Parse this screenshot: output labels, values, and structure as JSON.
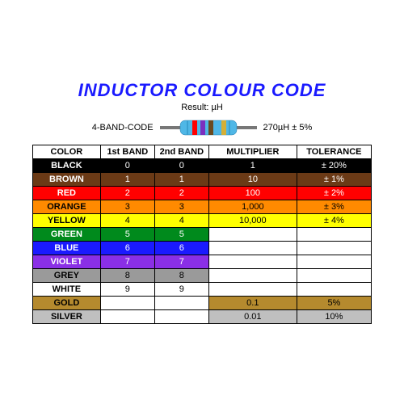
{
  "title": "INDUCTOR COLOUR CODE",
  "subtitle": "Result: µH",
  "diagram": {
    "left_label": "4-BAND-CODE",
    "right_label": "270µH ± 5%",
    "body_color": "#4fb7e6",
    "lead_color": "#777777",
    "band_colors": [
      "#ff0000",
      "#7b2fbf",
      "#6b4a1f",
      "#d4af37"
    ]
  },
  "table": {
    "headers": [
      "COLOR",
      "1st BAND",
      "2nd BAND",
      "MULTIPLIER",
      "TOLERANCE"
    ],
    "col_widths": [
      "20%",
      "16%",
      "16%",
      "26%",
      "22%"
    ],
    "rows": [
      {
        "name": "BLACK",
        "bg": "#000000",
        "fg": "#ffffff",
        "b1": "0",
        "b2": "0",
        "mult": "1",
        "mult_bg": "#000000",
        "mult_fg": "#ffffff",
        "tol": "± 20%",
        "tol_bg": "#000000",
        "tol_fg": "#ffffff"
      },
      {
        "name": "BROWN",
        "bg": "#6b3a16",
        "fg": "#ffffff",
        "b1": "1",
        "b2": "1",
        "mult": "10",
        "mult_bg": "#6b3a16",
        "mult_fg": "#ffffff",
        "tol": "± 1%",
        "tol_bg": "#6b3a16",
        "tol_fg": "#ffffff"
      },
      {
        "name": "RED",
        "bg": "#ff0000",
        "fg": "#ffffff",
        "b1": "2",
        "b2": "2",
        "mult": "100",
        "mult_bg": "#ff0000",
        "mult_fg": "#ffffff",
        "tol": "± 2%",
        "tol_bg": "#ff0000",
        "tol_fg": "#ffffff"
      },
      {
        "name": "ORANGE",
        "bg": "#ff8a00",
        "fg": "#000000",
        "b1": "3",
        "b2": "3",
        "mult": "1,000",
        "mult_bg": "#ff8a00",
        "mult_fg": "#000000",
        "tol": "± 3%",
        "tol_bg": "#ff8a00",
        "tol_fg": "#000000"
      },
      {
        "name": "YELLOW",
        "bg": "#ffff00",
        "fg": "#000000",
        "b1": "4",
        "b2": "4",
        "mult": "10,000",
        "mult_bg": "#ffff00",
        "mult_fg": "#000000",
        "tol": "± 4%",
        "tol_bg": "#ffff00",
        "tol_fg": "#000000"
      },
      {
        "name": "GREEN",
        "bg": "#008a1c",
        "fg": "#ffffff",
        "b1": "5",
        "b2": "5",
        "mult": "",
        "mult_bg": "#ffffff",
        "mult_fg": "#000000",
        "tol": "",
        "tol_bg": "#ffffff",
        "tol_fg": "#000000"
      },
      {
        "name": "BLUE",
        "bg": "#1a1aff",
        "fg": "#ffffff",
        "b1": "6",
        "b2": "6",
        "mult": "",
        "mult_bg": "#ffffff",
        "mult_fg": "#000000",
        "tol": "",
        "tol_bg": "#ffffff",
        "tol_fg": "#000000"
      },
      {
        "name": "VIOLET",
        "bg": "#8a2fe6",
        "fg": "#ffffff",
        "b1": "7",
        "b2": "7",
        "mult": "",
        "mult_bg": "#ffffff",
        "mult_fg": "#000000",
        "tol": "",
        "tol_bg": "#ffffff",
        "tol_fg": "#000000"
      },
      {
        "name": "GREY",
        "bg": "#9a9a9a",
        "fg": "#000000",
        "b1": "8",
        "b2": "8",
        "mult": "",
        "mult_bg": "#ffffff",
        "mult_fg": "#000000",
        "tol": "",
        "tol_bg": "#ffffff",
        "tol_fg": "#000000"
      },
      {
        "name": "WHITE",
        "bg": "#ffffff",
        "fg": "#000000",
        "b1": "9",
        "b2": "9",
        "mult": "",
        "mult_bg": "#ffffff",
        "mult_fg": "#000000",
        "tol": "",
        "tol_bg": "#ffffff",
        "tol_fg": "#000000"
      },
      {
        "name": "GOLD",
        "bg": "#b58a2e",
        "fg": "#000000",
        "b1": "",
        "b2": "",
        "b1_bg": "#ffffff",
        "b2_bg": "#ffffff",
        "mult": "0.1",
        "mult_bg": "#b58a2e",
        "mult_fg": "#000000",
        "tol": "5%",
        "tol_bg": "#b58a2e",
        "tol_fg": "#000000"
      },
      {
        "name": "SILVER",
        "bg": "#bfbfbf",
        "fg": "#000000",
        "b1": "",
        "b2": "",
        "b1_bg": "#ffffff",
        "b2_bg": "#ffffff",
        "mult": "0.01",
        "mult_bg": "#bfbfbf",
        "mult_fg": "#000000",
        "tol": "10%",
        "tol_bg": "#bfbfbf",
        "tol_fg": "#000000"
      }
    ]
  }
}
